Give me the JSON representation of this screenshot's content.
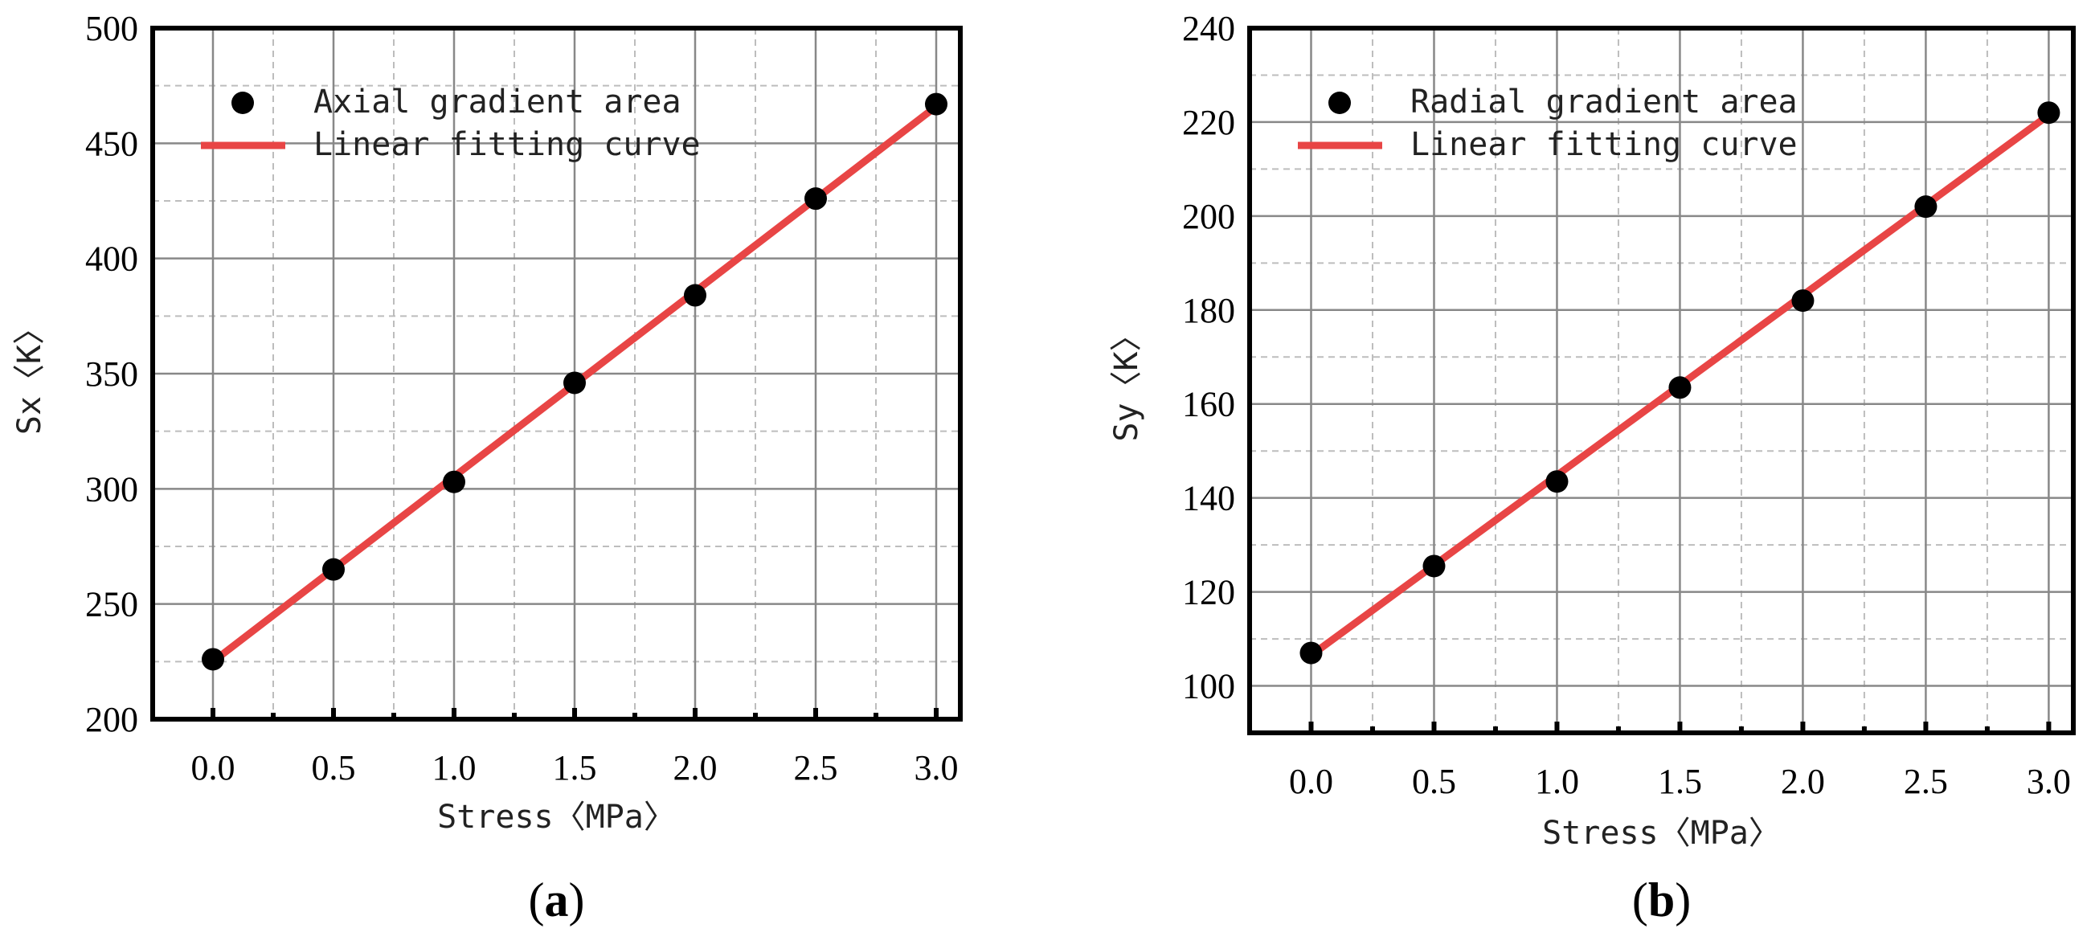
{
  "colors": {
    "fit": "#e84545",
    "point": "#000000",
    "grid": "#888888",
    "gridMinor": "#bdbdbd"
  },
  "chart_data": [
    {
      "type": "scatter",
      "panel": "(a)",
      "panel_letter": "a",
      "xlabel": "Stress〈MPa〉",
      "ylabel": "Sx〈K〉",
      "xlim": [
        -0.25,
        3.1
      ],
      "ylim": [
        200,
        500
      ],
      "xticks": [
        0.0,
        0.5,
        1.0,
        1.5,
        2.0,
        2.5,
        3.0
      ],
      "xtick_labels": [
        "0.0",
        "0.5",
        "1.0",
        "1.5",
        "2.0",
        "2.5",
        "3.0"
      ],
      "yticks": [
        200,
        250,
        300,
        350,
        400,
        450,
        500
      ],
      "ytick_labels": [
        "200",
        "250",
        "300",
        "350",
        "400",
        "450",
        "500"
      ],
      "grid": true,
      "legend": [
        "Axial gradient area",
        "Linear fitting curve"
      ],
      "legend_position": "top-left",
      "series": [
        {
          "name": "Axial gradient area",
          "kind": "points",
          "x": [
            0.0,
            0.5,
            1.0,
            1.5,
            2.0,
            2.5,
            3.0
          ],
          "y": [
            226,
            265,
            303,
            346,
            384,
            426,
            467
          ]
        },
        {
          "name": "Linear fitting curve",
          "kind": "line",
          "x": [
            0.0,
            3.0
          ],
          "y": [
            225,
            466
          ]
        }
      ]
    },
    {
      "type": "scatter",
      "panel": "(b)",
      "panel_letter": "b",
      "xlabel": "Stress〈MPa〉",
      "ylabel": "Sy〈K〉",
      "xlim": [
        -0.25,
        3.1
      ],
      "ylim": [
        90,
        240
      ],
      "xticks": [
        0.0,
        0.5,
        1.0,
        1.5,
        2.0,
        2.5,
        3.0
      ],
      "xtick_labels": [
        "0.0",
        "0.5",
        "1.0",
        "1.5",
        "2.0",
        "2.5",
        "3.0"
      ],
      "yticks": [
        100,
        120,
        140,
        160,
        180,
        200,
        220,
        240
      ],
      "ytick_labels": [
        "100",
        "120",
        "140",
        "160",
        "180",
        "200",
        "220",
        "240"
      ],
      "grid": true,
      "legend": [
        "Radial gradient area",
        "Linear fitting curve"
      ],
      "legend_position": "top-left",
      "series": [
        {
          "name": "Radial gradient area",
          "kind": "points",
          "x": [
            0.0,
            0.5,
            1.0,
            1.5,
            2.0,
            2.5,
            3.0
          ],
          "y": [
            107,
            125.5,
            143.5,
            163.5,
            182,
            202,
            222
          ]
        },
        {
          "name": "Linear fitting curve",
          "kind": "line",
          "x": [
            0.0,
            3.0
          ],
          "y": [
            106.5,
            221.5
          ]
        }
      ]
    }
  ]
}
